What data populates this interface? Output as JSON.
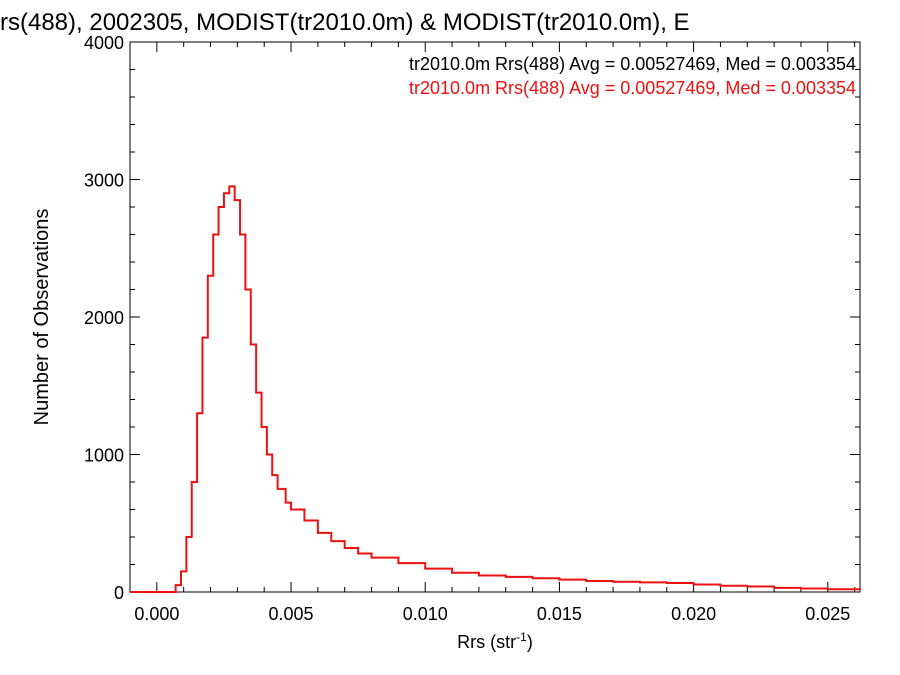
{
  "chart_data": {
    "type": "line",
    "title": "rs(488), 2002305, MODIST(tr2010.0m) & MODIST(tr2010.0m), E",
    "xlabel": "Rrs (str",
    "xlabel_sup": "-1",
    "xlabel_close": ")",
    "ylabel": "Number of Observations",
    "xlim": [
      -0.001,
      0.0262
    ],
    "ylim": [
      0,
      4000
    ],
    "x_ticks": [
      0.0,
      0.005,
      0.01,
      0.015,
      0.02,
      0.025
    ],
    "x_tick_labels": [
      "0.000",
      "0.005",
      "0.010",
      "0.015",
      "0.020",
      "0.025"
    ],
    "y_ticks": [
      0,
      1000,
      2000,
      3000,
      4000
    ],
    "y_tick_labels": [
      "0",
      "1000",
      "2000",
      "3000",
      "4000"
    ],
    "grid": false,
    "legend_position": "top-right",
    "colors": {
      "series_black": "#000000",
      "series_red": "#ee1111"
    },
    "legend": [
      {
        "text": "tr2010.0m Rrs(488) Avg = 0.00527469, Med = 0.003354",
        "color": "#000000"
      },
      {
        "text": "tr2010.0m Rrs(488) Avg = 0.00527469, Med = 0.003354",
        "color": "#ee1111"
      }
    ],
    "series": [
      {
        "color": "#ee1111",
        "x": [
          -0.001,
          0.0005,
          0.0007,
          0.0009,
          0.0011,
          0.0013,
          0.0015,
          0.0017,
          0.0019,
          0.0021,
          0.0023,
          0.0025,
          0.0027,
          0.0029,
          0.0031,
          0.0033,
          0.0035,
          0.0037,
          0.0039,
          0.0041,
          0.0043,
          0.0045,
          0.0048,
          0.005,
          0.0055,
          0.006,
          0.0065,
          0.007,
          0.0075,
          0.008,
          0.009,
          0.01,
          0.011,
          0.012,
          0.013,
          0.014,
          0.015,
          0.016,
          0.017,
          0.018,
          0.019,
          0.02,
          0.021,
          0.022,
          0.023,
          0.024,
          0.025,
          0.0262
        ],
        "y": [
          0,
          0,
          50,
          150,
          400,
          800,
          1300,
          1850,
          2300,
          2600,
          2800,
          2900,
          2950,
          2850,
          2600,
          2200,
          1800,
          1450,
          1200,
          1000,
          850,
          750,
          650,
          600,
          520,
          430,
          370,
          320,
          280,
          250,
          210,
          170,
          140,
          120,
          110,
          100,
          90,
          80,
          75,
          70,
          65,
          55,
          45,
          40,
          30,
          25,
          20,
          15
        ]
      }
    ]
  }
}
